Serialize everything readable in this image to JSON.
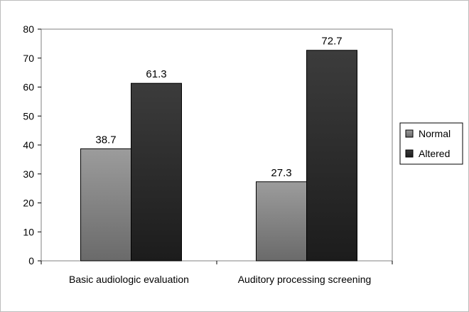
{
  "chart_data": {
    "type": "bar",
    "title": "",
    "xlabel": "",
    "ylabel": "",
    "categories": [
      "Basic audiologic evaluation",
      "Auditory processing screening"
    ],
    "series": [
      {
        "name": "Normal",
        "values": [
          38.7,
          27.3
        ],
        "data_labels": [
          "38.7",
          "27.3"
        ],
        "color": "#8a8a8a"
      },
      {
        "name": "Altered",
        "values": [
          61.3,
          72.7
        ],
        "data_labels": [
          "61.3",
          "72.7"
        ],
        "color": "#2e2e2e"
      }
    ],
    "ylim": [
      0,
      80
    ],
    "yticks": [
      0,
      10,
      20,
      30,
      40,
      50,
      60,
      70,
      80
    ],
    "ytick_labels": [
      "0",
      "10",
      "20",
      "30",
      "40",
      "50",
      "60",
      "70",
      "80"
    ],
    "grid": false,
    "legend_position": "right"
  }
}
